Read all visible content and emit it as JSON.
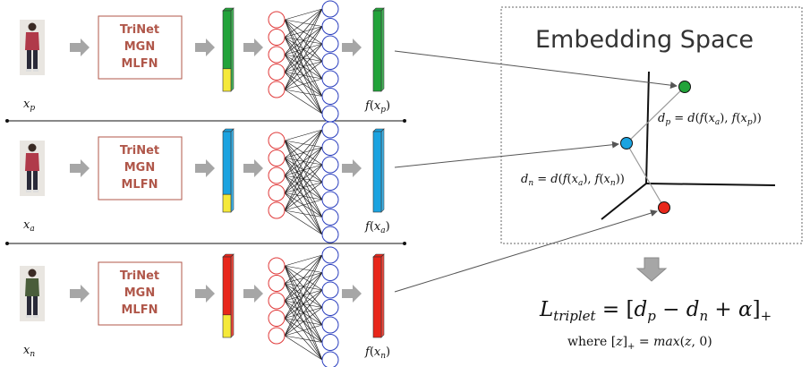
{
  "rows": [
    {
      "id": "positive",
      "input_label": "x_p",
      "input_base": "x",
      "input_sub": "p",
      "models": [
        "TriNet",
        "MGN",
        "MLFN"
      ],
      "feature_color": "#22a33a",
      "output_label": "f(x_p)",
      "output_sub": "p",
      "fill_fraction": 0.72
    },
    {
      "id": "anchor",
      "input_label": "x_a",
      "input_base": "x",
      "input_sub": "a",
      "models": [
        "TriNet",
        "MGN",
        "MLFN"
      ],
      "feature_color": "#1ba3e0",
      "output_label": "f(x_a)",
      "output_sub": "a",
      "fill_fraction": 0.78
    },
    {
      "id": "negative",
      "input_label": "x_n",
      "input_base": "x",
      "input_sub": "n",
      "models": [
        "TriNet",
        "MGN",
        "MLFN"
      ],
      "feature_color": "#e8271b",
      "output_label": "f(x_n)",
      "output_sub": "n",
      "fill_fraction": 0.72
    }
  ],
  "embedding": {
    "title": "Embedding Space",
    "dp_label": "d_p = d(f(x_a), f(x_p))",
    "dn_label": "d_n = d(f(x_a), f(x_n))",
    "point_colors": {
      "positive": "#22a33a",
      "anchor": "#1ba3e0",
      "negative": "#e8271b"
    }
  },
  "loss": {
    "formula": "L_triplet = [d_p − d_n + α]_+",
    "where": "where [z]_+ = max(z, 0)"
  },
  "colors": {
    "arrow_gray": "#a6a6a6",
    "fill_yellow": "#f5e93a",
    "neuron_red": "#e03a3a",
    "neuron_blue": "#2b3fbf",
    "model_border": "#b0574a"
  }
}
